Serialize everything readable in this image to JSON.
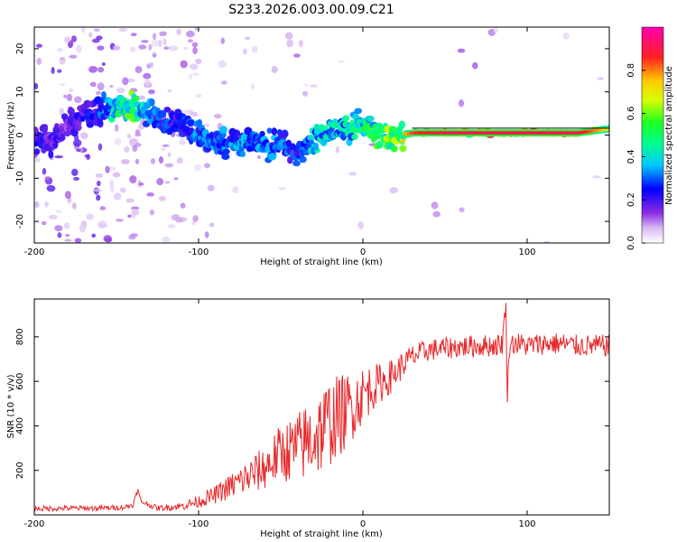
{
  "title": "S233.2026.003.00.09.C21",
  "colors": {
    "snr_line": "#e8282b",
    "spectrogram_low": "#b57ae8",
    "axes": "#000000"
  },
  "chart_data": [
    {
      "type": "heatmap",
      "name": "spectrogram",
      "xlabel": "Height of straight line (km)",
      "ylabel": "Frequency (Hz)",
      "xlim": [
        -200,
        150
      ],
      "ylim": [
        -25,
        25
      ],
      "xticks": [
        -200,
        -100,
        0,
        100
      ],
      "xtick_labels": [
        "-200",
        "-100",
        "0",
        "100"
      ],
      "yticks": [
        -20,
        -10,
        0,
        10,
        20
      ],
      "ytick_labels": [
        "-20",
        "-10",
        "0",
        "10",
        "20"
      ],
      "ridge": {
        "x": [
          -200,
          -190,
          -180,
          -170,
          -160,
          -150,
          -140,
          -130,
          -120,
          -110,
          -100,
          -90,
          -80,
          -70,
          -60,
          -50,
          -40,
          -30,
          -20,
          -10,
          0,
          10,
          20,
          30,
          50,
          70,
          90,
          110,
          130,
          150
        ],
        "freq": [
          -1,
          -2,
          2,
          5,
          5.5,
          6.5,
          6.5,
          5,
          3,
          3,
          0,
          -2,
          -2,
          -1,
          -3,
          -1,
          -5,
          -1,
          1,
          2,
          2.5,
          0,
          0,
          0.5,
          0.5,
          0.5,
          0.5,
          0.5,
          0.5,
          1.5
        ],
        "amplitude": [
          0.25,
          0.22,
          0.2,
          0.25,
          0.3,
          0.5,
          0.6,
          0.35,
          0.3,
          0.3,
          0.35,
          0.4,
          0.35,
          0.4,
          0.35,
          0.35,
          0.3,
          0.45,
          0.45,
          0.45,
          0.5,
          0.6,
          0.7,
          0.85,
          0.9,
          0.9,
          0.9,
          0.9,
          0.9,
          0.7
        ]
      },
      "colorbar": {
        "label": "Normalized spectral amplitude",
        "range": [
          0,
          1
        ],
        "ticks": [
          0.0,
          0.2,
          0.4,
          0.6,
          0.8
        ],
        "tick_labels": [
          "0.0",
          "0.2",
          "0.4",
          "0.6",
          "0.8"
        ]
      }
    },
    {
      "type": "line",
      "name": "snr",
      "xlabel": "Height of straight line (km)",
      "ylabel": "SNR (10 * v/v)",
      "xlim": [
        -200,
        150
      ],
      "ylim": [
        0,
        970
      ],
      "xticks": [
        -200,
        -100,
        0,
        100
      ],
      "xtick_labels": [
        "-200",
        "-100",
        "0",
        "100"
      ],
      "yticks": [
        200,
        400,
        600,
        800
      ],
      "ytick_labels": [
        "200",
        "400",
        "600",
        "800"
      ],
      "series": [
        {
          "name": "SNR",
          "x": [
            -200,
            -180,
            -160,
            -145,
            -140,
            -137,
            -135,
            -125,
            -110,
            -100,
            -90,
            -80,
            -70,
            -60,
            -50,
            -40,
            -30,
            -25,
            -20,
            -15,
            -10,
            -5,
            0,
            5,
            10,
            15,
            20,
            25,
            30,
            40,
            50,
            60,
            70,
            80,
            85,
            87,
            88,
            89,
            90,
            95,
            100,
            110,
            120,
            130,
            140,
            150
          ],
          "values": [
            28,
            30,
            30,
            35,
            45,
            110,
            60,
            30,
            40,
            60,
            90,
            130,
            170,
            210,
            280,
            300,
            350,
            380,
            420,
            440,
            470,
            500,
            540,
            570,
            590,
            610,
            640,
            680,
            710,
            740,
            750,
            755,
            760,
            760,
            770,
            960,
            520,
            760,
            770,
            770,
            760,
            770,
            770,
            760,
            760,
            760
          ],
          "noise": [
            12,
            12,
            12,
            12,
            12,
            12,
            12,
            12,
            18,
            28,
            40,
            60,
            80,
            100,
            130,
            160,
            190,
            200,
            200,
            190,
            170,
            150,
            130,
            110,
            90,
            80,
            70,
            60,
            55,
            50,
            50,
            50,
            50,
            50,
            50,
            50,
            50,
            50,
            50,
            50,
            50,
            50,
            50,
            50,
            50,
            50
          ]
        }
      ]
    }
  ]
}
